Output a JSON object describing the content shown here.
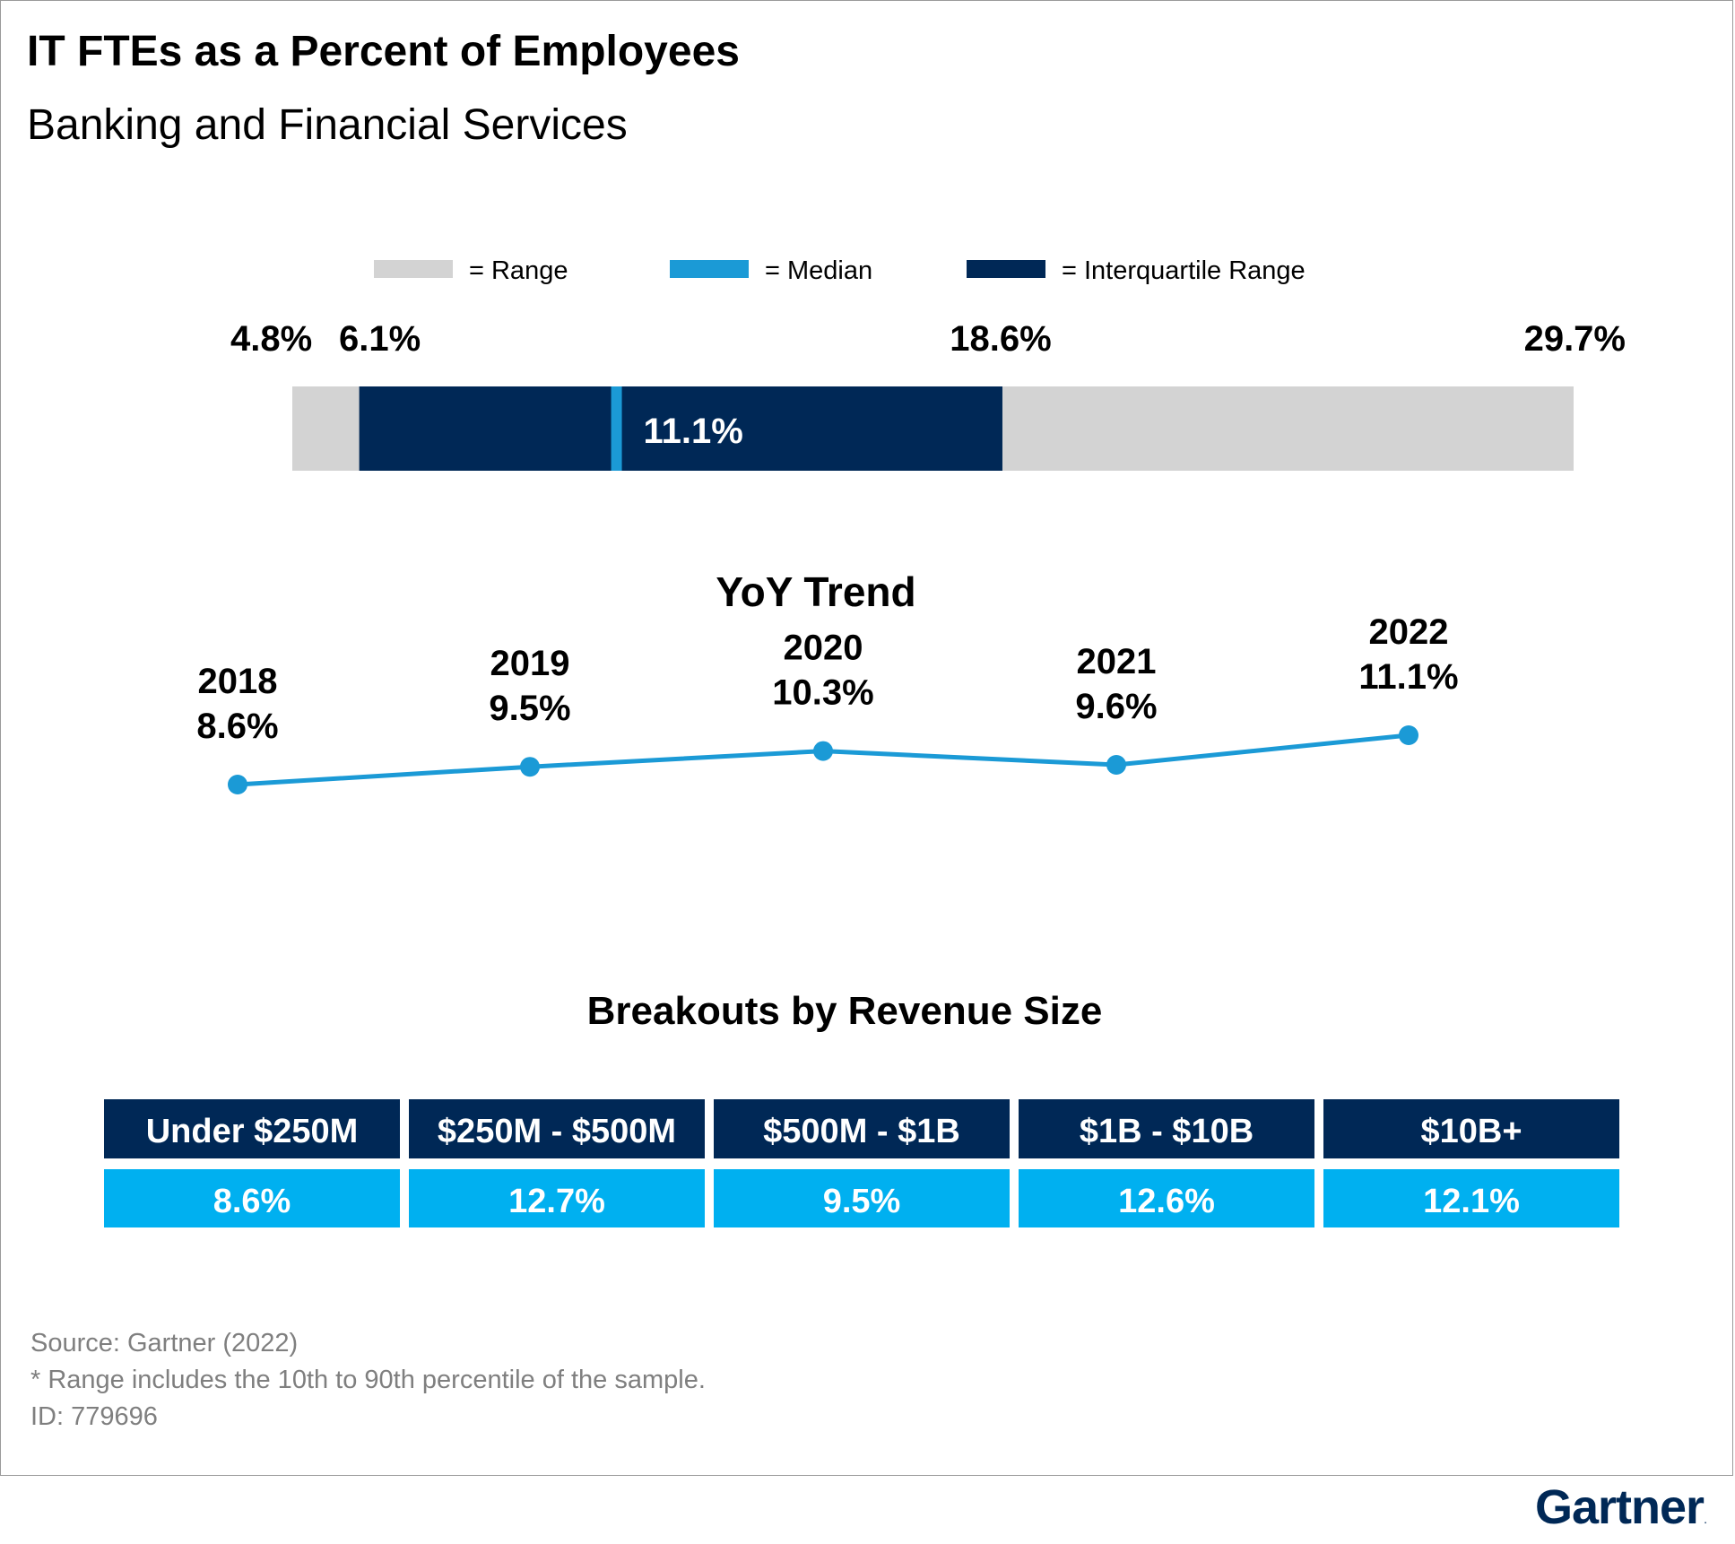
{
  "header": {
    "title": "IT FTEs as a Percent of Employees",
    "subtitle": "Banking and Financial Services"
  },
  "legend": [
    {
      "label": "= Range",
      "color": "#d3d3d3"
    },
    {
      "label": "= Median",
      "color": "#1b9ad6"
    },
    {
      "label": "= Interquartile Range",
      "color": "#002856"
    }
  ],
  "chart_data": [
    {
      "type": "bar",
      "orientation": "horizontal",
      "range": [
        4.8,
        29.7
      ],
      "interquartile_range": [
        6.1,
        18.6
      ],
      "median": 11.1,
      "labels": {
        "range_min": "4.8%",
        "q1": "6.1%",
        "median": "11.1%",
        "q3": "18.6%",
        "range_max": "29.7%"
      },
      "colors": {
        "range": "#d3d3d3",
        "iqr": "#002856",
        "median": "#1b9ad6"
      }
    },
    {
      "type": "line",
      "title": "YoY Trend",
      "x": [
        "2018",
        "2019",
        "2020",
        "2021",
        "2022"
      ],
      "values": [
        8.6,
        9.5,
        10.3,
        9.6,
        11.1
      ],
      "value_labels": [
        "8.6%",
        "9.5%",
        "10.3%",
        "9.6%",
        "11.1%"
      ],
      "color": "#1b9ad6",
      "axes_visible": false,
      "grid": false
    },
    {
      "type": "table",
      "title": "Breakouts by Revenue Size",
      "columns": [
        "Under $250M",
        "$250M - $500M",
        "$500M - $1B",
        "$1B - $10B",
        "$10B+"
      ],
      "values": [
        8.6,
        12.7,
        9.5,
        12.6,
        12.1
      ],
      "value_labels": [
        "8.6%",
        "12.7%",
        "9.5%",
        "12.6%",
        "12.1%"
      ],
      "colors": {
        "header": "#002856",
        "cells": "#00b0f0"
      }
    }
  ],
  "footer": {
    "source": "Source: Gartner (2022)",
    "note": "* Range includes the 10th to 90th percentile of the sample.",
    "id": "ID: 779696"
  },
  "brand": {
    "logo_text": "Gartner",
    "mark": "."
  }
}
